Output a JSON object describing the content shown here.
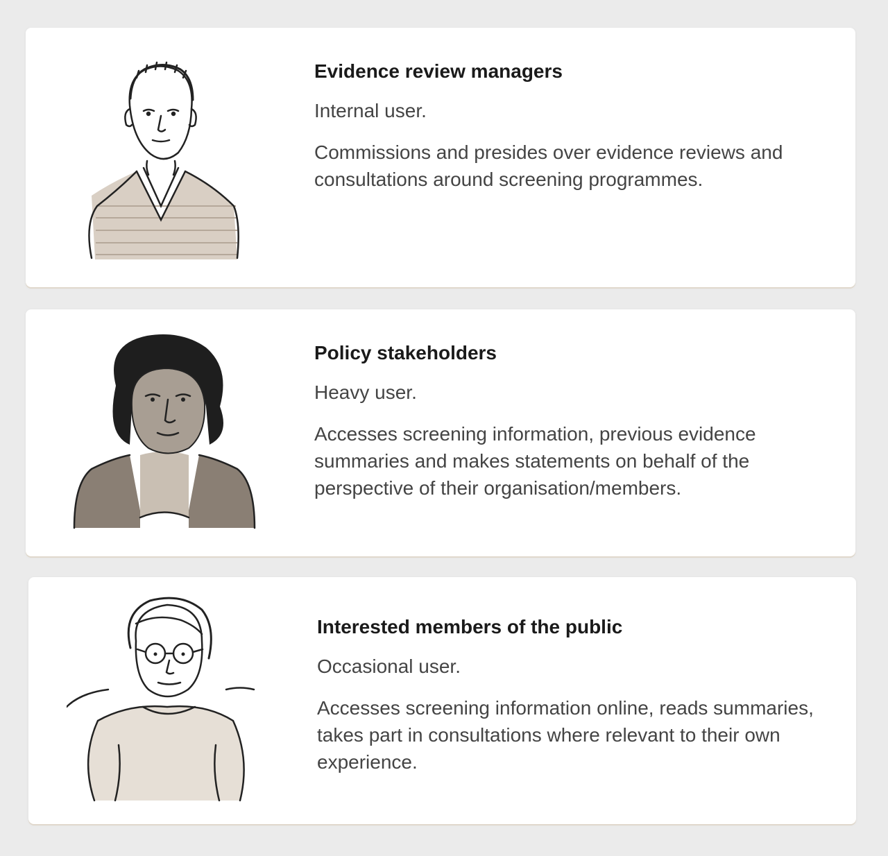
{
  "personas": [
    {
      "title": "Evidence review managers",
      "role": "Internal user.",
      "description": "Commissions and presides over evidence reviews and consultations around screening programmes."
    },
    {
      "title": "Policy stakeholders",
      "role": "Heavy user.",
      "description": "Accesses screening information, previous evidence summaries and makes statements on behalf of the perspective of their organisation/members."
    },
    {
      "title": "Interested members of the public",
      "role": "Occasional user.",
      "description": "Accesses screening information online, reads summaries, takes part in consultations where relevant to their own experience."
    }
  ]
}
